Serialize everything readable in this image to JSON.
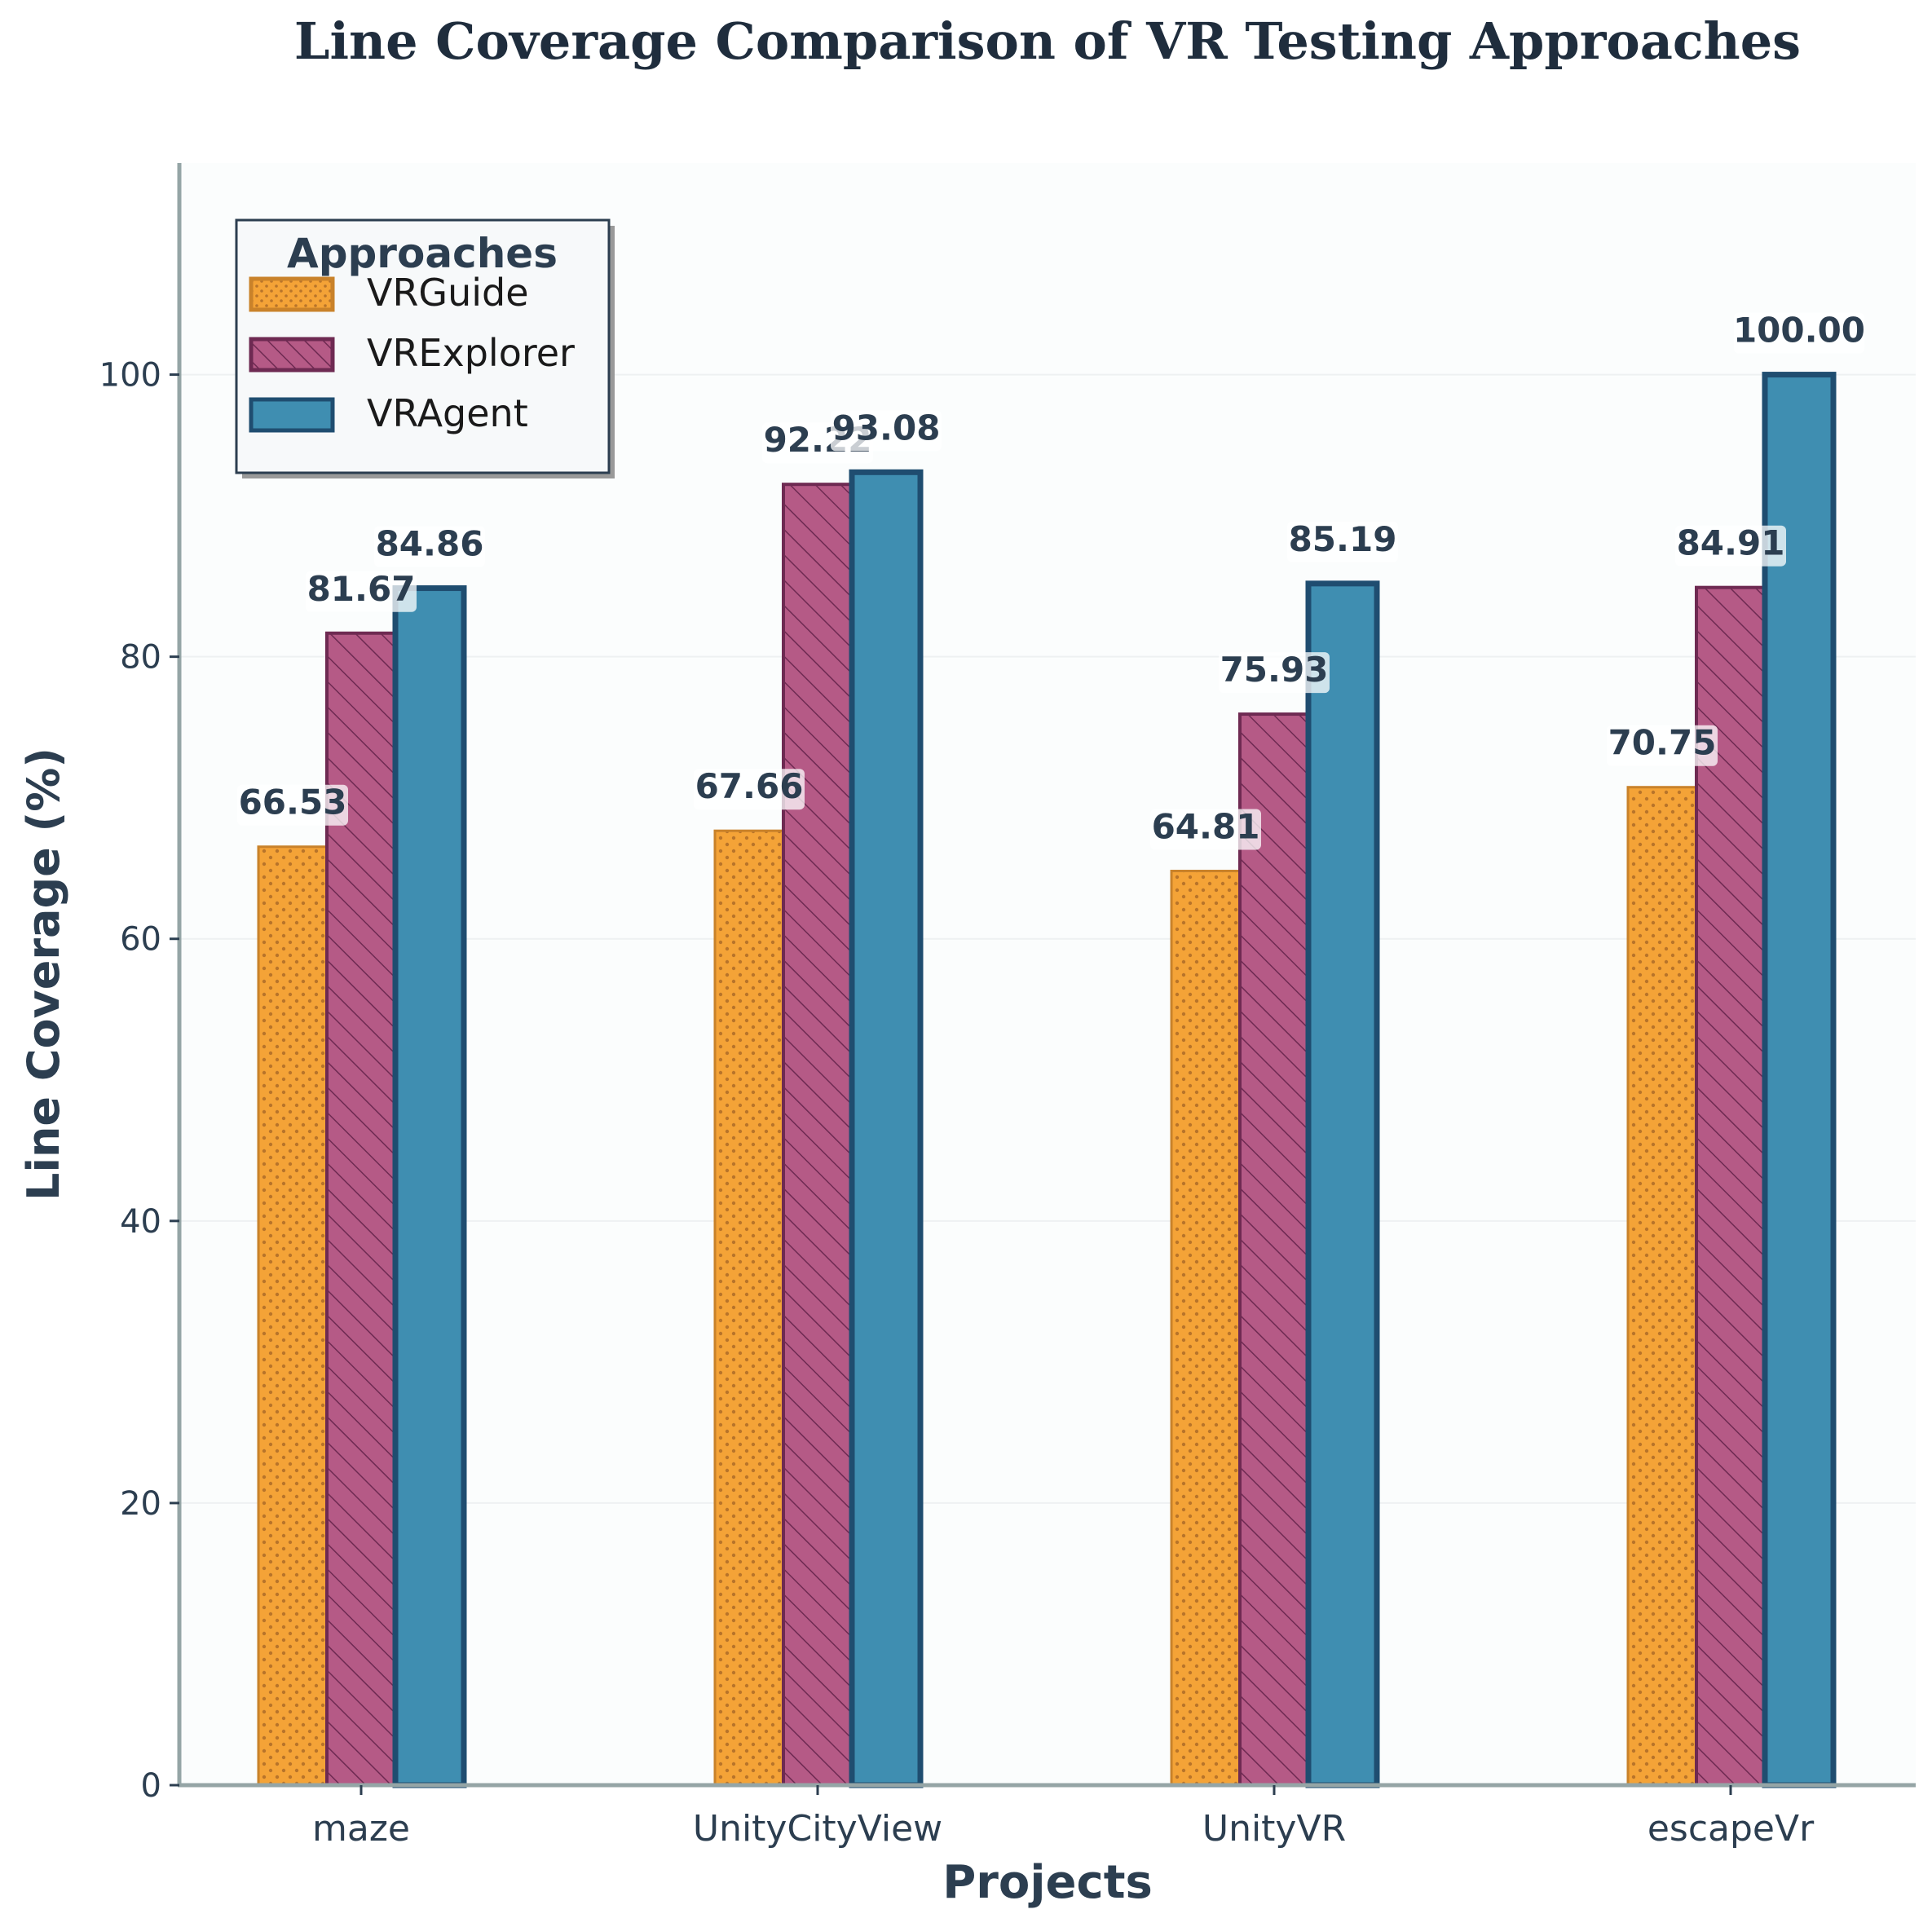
{
  "chart_data": {
    "type": "bar",
    "title": "Line Coverage Comparison of VR Testing Approaches",
    "xlabel": "Projects",
    "ylabel": "Line Coverage (%)",
    "categories": [
      "maze",
      "UnityCityView",
      "UnityVR",
      "escapeVr"
    ],
    "series": [
      {
        "name": "VRGuide",
        "values": [
          66.53,
          67.66,
          64.81,
          70.75
        ],
        "color": "#f4a337",
        "edge": "#c9822a",
        "pattern": "dots"
      },
      {
        "name": "VRExplorer",
        "values": [
          81.67,
          92.22,
          75.93,
          84.91
        ],
        "color": "#b55a86",
        "edge": "#6e2a52",
        "pattern": "hatch"
      },
      {
        "name": "VRAgent",
        "values": [
          84.86,
          93.08,
          85.19,
          100.0
        ],
        "color": "#3f8eb1",
        "edge": "#1f4d70",
        "pattern": "solid"
      }
    ],
    "value_labels": [
      [
        "66.53",
        "67.66",
        "64.81",
        "70.75"
      ],
      [
        "81.67",
        "92.22",
        "75.93",
        "84.91"
      ],
      [
        "84.86",
        "93.08",
        "85.19",
        "100.00"
      ]
    ],
    "yticks": [
      0,
      20,
      40,
      60,
      80,
      100
    ],
    "ylim": [
      0,
      115
    ],
    "grid": "horizontal",
    "legend": {
      "title": "Approaches",
      "position": "top-left"
    }
  }
}
